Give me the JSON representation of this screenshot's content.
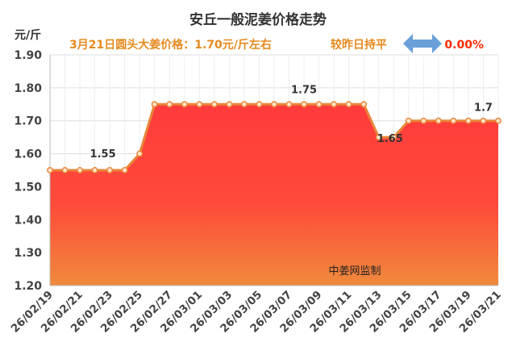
{
  "chart_data": {
    "type": "area",
    "title": "安丘一般泥姜价格走势",
    "subtitle": {
      "price_text": "3月21日圆头大姜价格：1.70元/斤左右",
      "change_text": "较昨日持平",
      "change_value": "0.00%"
    },
    "unit_label": "元/斤",
    "ylim": [
      1.2,
      1.9
    ],
    "y_ticks": [
      "1.20",
      "1.30",
      "1.40",
      "1.50",
      "1.60",
      "1.70",
      "1.80",
      "1.90"
    ],
    "x_tick_labels": [
      "26/02/19",
      "26/02/21",
      "26/02/23",
      "26/02/25",
      "26/02/27",
      "26/03/01",
      "26/03/03",
      "26/03/05",
      "26/03/07",
      "26/03/09",
      "26/03/11",
      "26/03/13",
      "26/03/15",
      "26/03/17",
      "26/03/19",
      "26/03/21"
    ],
    "x": [
      "26/02/19",
      "26/02/20",
      "26/02/21",
      "26/02/22",
      "26/02/23",
      "26/02/24",
      "26/02/25",
      "26/02/26",
      "26/02/27",
      "26/02/28",
      "26/03/01",
      "26/03/02",
      "26/03/03",
      "26/03/04",
      "26/03/05",
      "26/03/06",
      "26/03/07",
      "26/03/08",
      "26/03/09",
      "26/03/10",
      "26/03/11",
      "26/03/12",
      "26/03/13",
      "26/03/14",
      "26/03/15",
      "26/03/16",
      "26/03/17",
      "26/03/18",
      "26/03/19",
      "26/03/20",
      "26/03/21"
    ],
    "values": [
      1.55,
      1.55,
      1.55,
      1.55,
      1.55,
      1.55,
      1.6,
      1.75,
      1.75,
      1.75,
      1.75,
      1.75,
      1.75,
      1.75,
      1.75,
      1.75,
      1.75,
      1.75,
      1.75,
      1.75,
      1.75,
      1.75,
      1.65,
      1.65,
      1.7,
      1.7,
      1.7,
      1.7,
      1.7,
      1.7,
      1.7
    ],
    "data_labels": [
      {
        "x": "26/02/22",
        "text": "1.55"
      },
      {
        "x": "26/03/08",
        "text": "1.75"
      },
      {
        "x": "26/03/13",
        "text": "1.65"
      },
      {
        "x": "26/03/20",
        "text": "1.7"
      }
    ],
    "watermark": "中姜网监制",
    "grid": true,
    "colors": {
      "line": "#e8863a",
      "marker_fill": "#fbe3c8",
      "area_top": "#ff3b3b",
      "area_bottom": "#f08a3c",
      "subtitle_orange": "#e58a1f",
      "subtitle_red": "#ff2a00",
      "arrow_blue": "#6a9fd8",
      "grid": "#dddddd"
    }
  }
}
